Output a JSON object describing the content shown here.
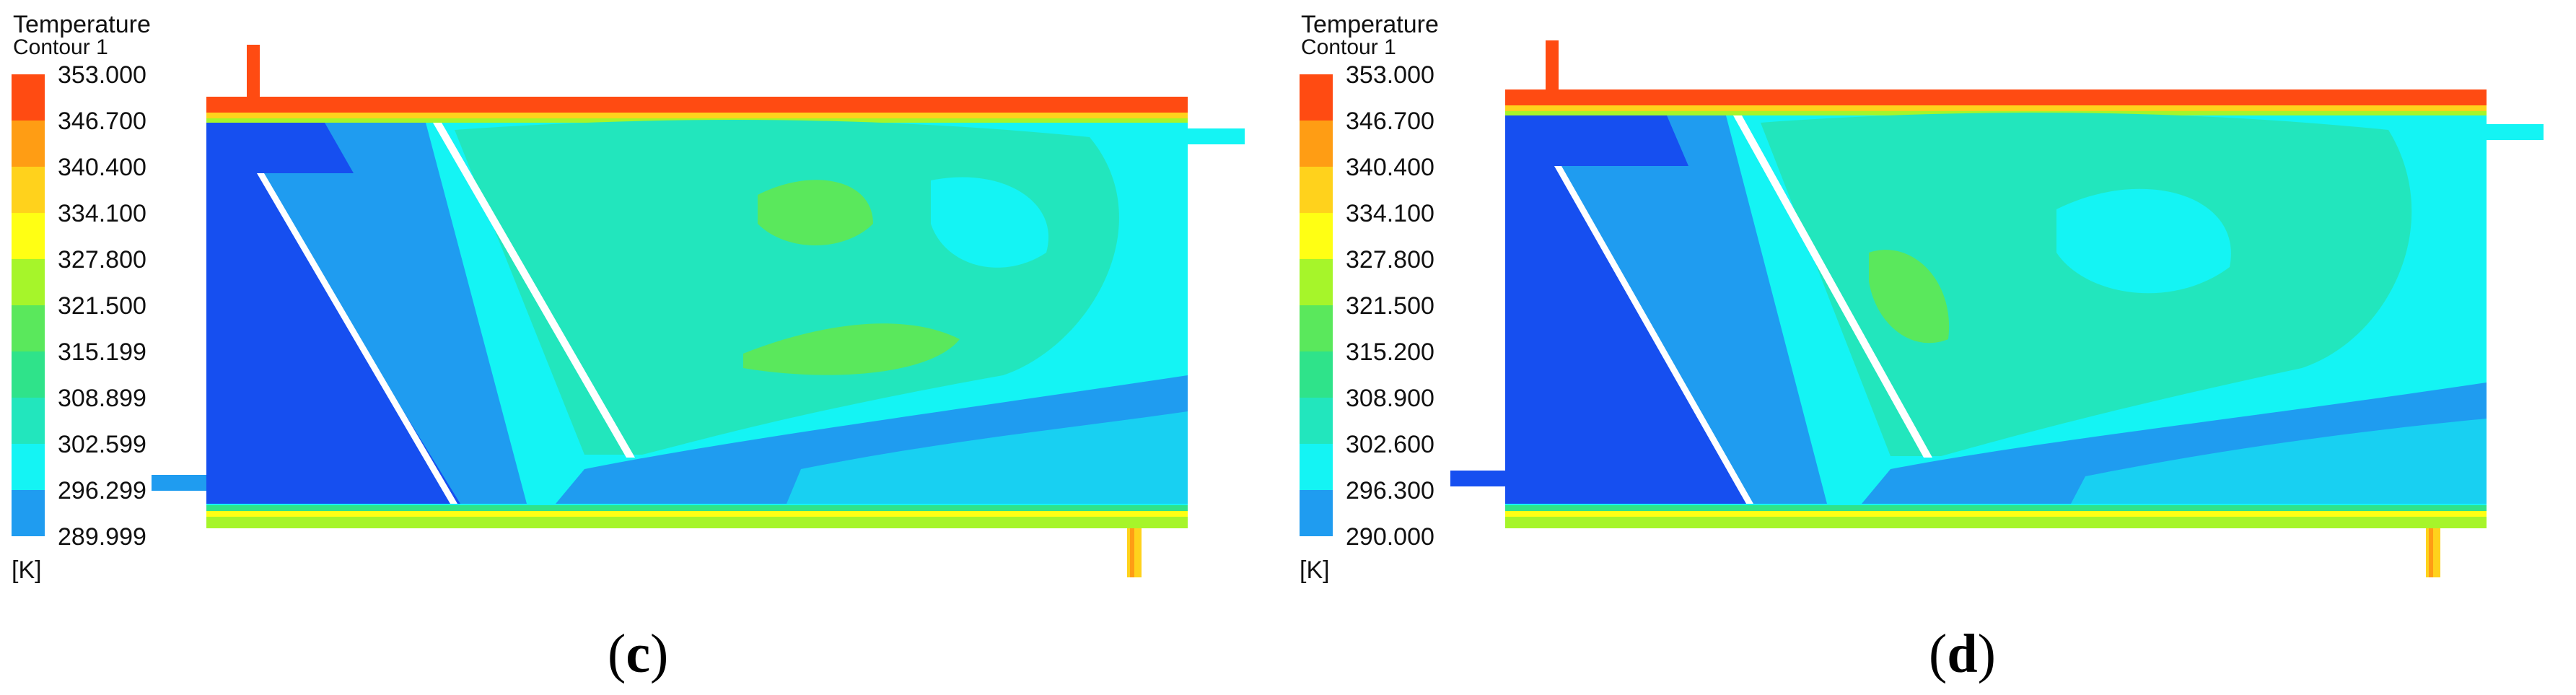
{
  "panels": [
    {
      "id": "c",
      "legend": {
        "title": "Temperature",
        "subtitle": "Contour 1",
        "unit": "[K]",
        "ticks": [
          "353.000",
          "346.700",
          "340.400",
          "334.100",
          "327.800",
          "321.500",
          "315.199",
          "308.899",
          "302.599",
          "296.299",
          "289.999"
        ]
      },
      "label_open": "(",
      "label_letter": "c",
      "label_close": ")"
    },
    {
      "id": "d",
      "legend": {
        "title": "Temperature",
        "subtitle": "Contour 1",
        "unit": "[K]",
        "ticks": [
          "353.000",
          "346.700",
          "340.400",
          "334.100",
          "327.800",
          "321.500",
          "315.200",
          "308.900",
          "302.600",
          "296.300",
          "290.000"
        ]
      },
      "label_open": "(",
      "label_letter": "d",
      "label_close": ")"
    }
  ],
  "colors": {
    "band_1": "#ff4b12",
    "band_2": "#ff9d14",
    "band_3": "#ffd21c",
    "band_4": "#ffff14",
    "band_5": "#a6f52a",
    "band_6": "#5ae85c",
    "band_7": "#2fe38a",
    "band_8": "#22e6bd",
    "band_9": "#14f4f4",
    "band_10": "#1f9cf0",
    "band_11": "#164ff0",
    "baffle": "#ffffff"
  }
}
